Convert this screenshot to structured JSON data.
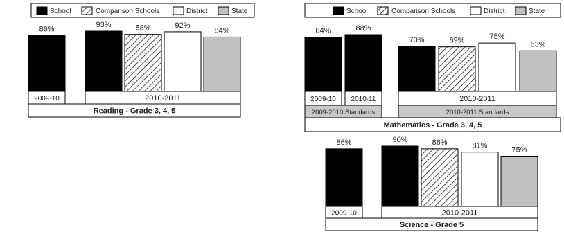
{
  "legend": {
    "items": [
      {
        "key": "school",
        "label": "School"
      },
      {
        "key": "comparison",
        "label": "Comparison Schools"
      },
      {
        "key": "district",
        "label": "District"
      },
      {
        "key": "state",
        "label": "State"
      }
    ]
  },
  "colors": {
    "school": "#000000",
    "comparison": "#ffffff",
    "district": "#ffffff",
    "state": "#c0c0c0",
    "stroke": "#000000",
    "standards_band": "#c8c8c8"
  },
  "chart_data": [
    {
      "type": "bar",
      "title": "Reading - Grade 3, 4, 5",
      "ylim": [
        0,
        100
      ],
      "grid": false,
      "bars": [
        {
          "key": "school",
          "period": "2009-10",
          "value": 86,
          "label": "86%"
        },
        {
          "key": "school",
          "period": "2010-2011",
          "value": 93,
          "label": "93%"
        },
        {
          "key": "comparison",
          "period": "2010-2011",
          "value": 88,
          "label": "88%"
        },
        {
          "key": "district",
          "period": "2010-2011",
          "value": 92,
          "label": "92%"
        },
        {
          "key": "state",
          "period": "2010-2011",
          "value": 84,
          "label": "84%"
        }
      ],
      "periods": [
        "2009-10",
        "2010-2011"
      ],
      "standards": []
    },
    {
      "type": "bar",
      "title": "Mathematics - Grade 3, 4, 5",
      "ylim": [
        0,
        100
      ],
      "grid": false,
      "bars": [
        {
          "key": "school",
          "period": "2009-10",
          "value": 84,
          "label": "84%"
        },
        {
          "key": "school",
          "period": "2010-11",
          "value": 88,
          "label": "88%"
        },
        {
          "key": "school",
          "period": "2010-2011",
          "value": 70,
          "label": "70%"
        },
        {
          "key": "comparison",
          "period": "2010-2011",
          "value": 69,
          "label": "69%"
        },
        {
          "key": "district",
          "period": "2010-2011",
          "value": 75,
          "label": "75%"
        },
        {
          "key": "state",
          "period": "2010-2011",
          "value": 63,
          "label": "63%"
        }
      ],
      "periods": [
        "2009-10",
        "2010-11",
        "2010-2011"
      ],
      "standards": [
        "2009-2010 Standards",
        "2010-2011 Standards"
      ]
    },
    {
      "type": "bar",
      "title": "Science - Grade 5",
      "ylim": [
        0,
        100
      ],
      "grid": false,
      "bars": [
        {
          "key": "school",
          "period": "2009-10",
          "value": 86,
          "label": "86%"
        },
        {
          "key": "school",
          "period": "2010-2011",
          "value": 90,
          "label": "90%"
        },
        {
          "key": "comparison",
          "period": "2010-2011",
          "value": 86,
          "label": "86%"
        },
        {
          "key": "district",
          "period": "2010-2011",
          "value": 81,
          "label": "81%"
        },
        {
          "key": "state",
          "period": "2010-2011",
          "value": 75,
          "label": "75%"
        }
      ],
      "periods": [
        "2009-10",
        "2010-2011"
      ],
      "standards": []
    }
  ]
}
